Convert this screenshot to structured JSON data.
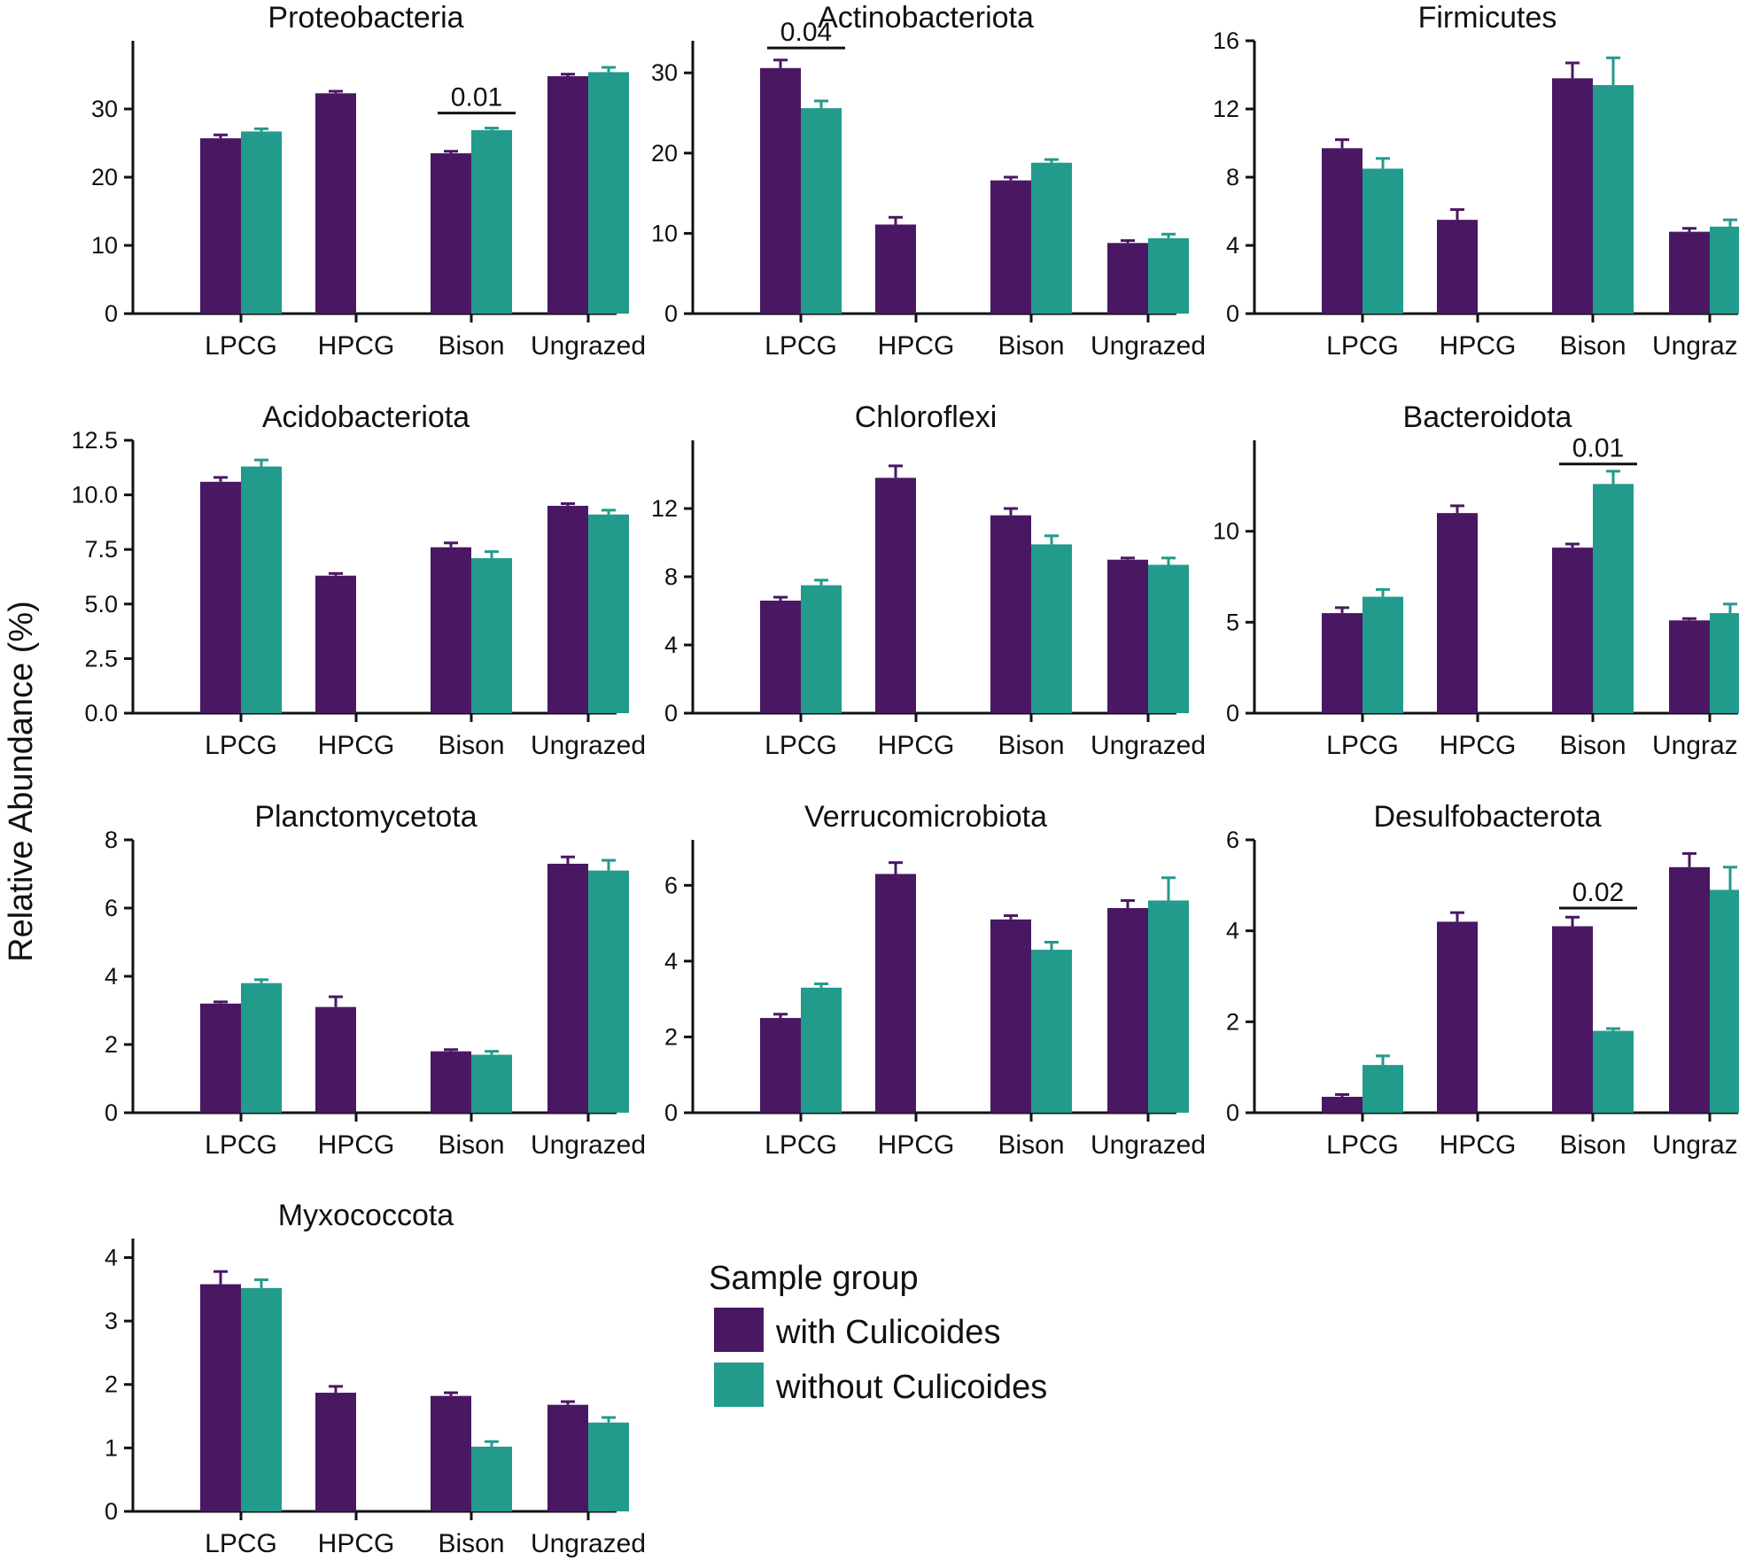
{
  "chart_data": [
    {
      "type": "bar",
      "title": "Proteobacteria",
      "categories": [
        "LPCG",
        "HPCG",
        "Bison",
        "Ungrazed"
      ],
      "ylim": [
        0,
        40
      ],
      "yticks": [
        "0",
        "10",
        "20",
        "30"
      ],
      "series": [
        {
          "name": "with Culicoides",
          "values": [
            25.7,
            32.3,
            23.5,
            34.8
          ],
          "errors": [
            0.5,
            0.3,
            0.3,
            0.3
          ]
        },
        {
          "name": "without Culicoides",
          "values": [
            26.7,
            null,
            26.9,
            35.4
          ],
          "errors": [
            0.4,
            null,
            0.3,
            0.7
          ]
        }
      ],
      "annotations": [
        {
          "label": "0.01",
          "category": "Bison",
          "height": 29.4
        }
      ]
    },
    {
      "type": "bar",
      "title": "Actinobacteriota",
      "categories": [
        "LPCG",
        "HPCG",
        "Bison",
        "Ungrazed"
      ],
      "ylim": [
        0,
        34
      ],
      "yticks": [
        "0",
        "10",
        "20",
        "30"
      ],
      "series": [
        {
          "name": "with Culicoides",
          "values": [
            30.6,
            11.1,
            16.6,
            8.8
          ],
          "errors": [
            1.0,
            0.9,
            0.4,
            0.3
          ]
        },
        {
          "name": "without Culicoides",
          "values": [
            25.6,
            null,
            18.8,
            9.4
          ],
          "errors": [
            0.9,
            null,
            0.4,
            0.5
          ]
        }
      ],
      "annotations": [
        {
          "label": "0.04",
          "category": "LPCG",
          "height": 33.1
        }
      ]
    },
    {
      "type": "bar",
      "title": "Firmicutes",
      "categories": [
        "LPCG",
        "HPCG",
        "Bison",
        "Ungrazed"
      ],
      "ylim": [
        0,
        16
      ],
      "yticks": [
        "0",
        "4",
        "8",
        "12",
        "16"
      ],
      "series": [
        {
          "name": "with Culicoides",
          "values": [
            9.7,
            5.5,
            13.8,
            4.8
          ],
          "errors": [
            0.5,
            0.6,
            0.9,
            0.2
          ]
        },
        {
          "name": "without Culicoides",
          "values": [
            8.5,
            null,
            13.4,
            5.1
          ],
          "errors": [
            0.6,
            null,
            1.6,
            0.4
          ]
        }
      ],
      "annotations": []
    },
    {
      "type": "bar",
      "title": "Acidobacteriota",
      "categories": [
        "LPCG",
        "HPCG",
        "Bison",
        "Ungrazed"
      ],
      "ylim": [
        0,
        12.5
      ],
      "yticks": [
        "0.0",
        "2.5",
        "5.0",
        "7.5",
        "10.0",
        "12.5"
      ],
      "series": [
        {
          "name": "with Culicoides",
          "values": [
            10.6,
            6.3,
            7.6,
            9.5
          ],
          "errors": [
            0.2,
            0.1,
            0.2,
            0.1
          ]
        },
        {
          "name": "without Culicoides",
          "values": [
            11.3,
            null,
            7.1,
            9.1
          ],
          "errors": [
            0.3,
            null,
            0.3,
            0.2
          ]
        }
      ],
      "annotations": []
    },
    {
      "type": "bar",
      "title": "Chloroflexi",
      "categories": [
        "LPCG",
        "HPCG",
        "Bison",
        "Ungrazed"
      ],
      "ylim": [
        0,
        16
      ],
      "yticks": [
        "0",
        "4",
        "8",
        "12"
      ],
      "series": [
        {
          "name": "with Culicoides",
          "values": [
            6.6,
            13.8,
            11.6,
            9.0
          ],
          "errors": [
            0.2,
            0.7,
            0.4,
            0.1
          ]
        },
        {
          "name": "without Culicoides",
          "values": [
            7.5,
            null,
            9.9,
            8.7
          ],
          "errors": [
            0.3,
            null,
            0.5,
            0.4
          ]
        }
      ],
      "annotations": []
    },
    {
      "type": "bar",
      "title": "Bacteroidota",
      "categories": [
        "LPCG",
        "HPCG",
        "Bison",
        "Ungrazed"
      ],
      "ylim": [
        0,
        15
      ],
      "yticks": [
        "0",
        "5",
        "10"
      ],
      "series": [
        {
          "name": "with Culicoides",
          "values": [
            5.5,
            11.0,
            9.1,
            5.1
          ],
          "errors": [
            0.3,
            0.4,
            0.2,
            0.1
          ]
        },
        {
          "name": "without Culicoides",
          "values": [
            6.4,
            null,
            12.6,
            5.5
          ],
          "errors": [
            0.4,
            null,
            0.7,
            0.5
          ]
        }
      ],
      "annotations": [
        {
          "label": "0.01",
          "category": "Bison",
          "height": 13.7
        }
      ]
    },
    {
      "type": "bar",
      "title": "Planctomycetota",
      "categories": [
        "LPCG",
        "HPCG",
        "Bison",
        "Ungrazed"
      ],
      "ylim": [
        0,
        8
      ],
      "yticks": [
        "0",
        "2",
        "4",
        "6",
        "8"
      ],
      "series": [
        {
          "name": "with Culicoides",
          "values": [
            3.2,
            3.1,
            1.8,
            7.3
          ],
          "errors": [
            0.05,
            0.3,
            0.05,
            0.2
          ]
        },
        {
          "name": "without Culicoides",
          "values": [
            3.8,
            null,
            1.7,
            7.1
          ],
          "errors": [
            0.1,
            null,
            0.1,
            0.3
          ]
        }
      ],
      "annotations": []
    },
    {
      "type": "bar",
      "title": "Verrucomicrobiota",
      "categories": [
        "LPCG",
        "HPCG",
        "Bison",
        "Ungrazed"
      ],
      "ylim": [
        0,
        7.2
      ],
      "yticks": [
        "0",
        "2",
        "4",
        "6"
      ],
      "series": [
        {
          "name": "with Culicoides",
          "values": [
            2.5,
            6.3,
            5.1,
            5.4
          ],
          "errors": [
            0.1,
            0.3,
            0.1,
            0.2
          ]
        },
        {
          "name": "without Culicoides",
          "values": [
            3.3,
            null,
            4.3,
            5.6
          ],
          "errors": [
            0.1,
            null,
            0.2,
            0.6
          ]
        }
      ],
      "annotations": []
    },
    {
      "type": "bar",
      "title": "Desulfobacterota",
      "categories": [
        "LPCG",
        "HPCG",
        "Bison",
        "Ungrazed"
      ],
      "ylim": [
        0,
        6
      ],
      "yticks": [
        "0",
        "2",
        "4",
        "6"
      ],
      "series": [
        {
          "name": "with Culicoides",
          "values": [
            0.35,
            4.2,
            4.1,
            5.4
          ],
          "errors": [
            0.05,
            0.2,
            0.2,
            0.3
          ]
        },
        {
          "name": "without Culicoides",
          "values": [
            1.05,
            null,
            1.8,
            4.9
          ],
          "errors": [
            0.2,
            null,
            0.05,
            0.5
          ]
        }
      ],
      "annotations": [
        {
          "label": "0.02",
          "category": "Bison",
          "height": 4.5
        }
      ]
    },
    {
      "type": "bar",
      "title": "Myxococcota",
      "categories": [
        "LPCG",
        "HPCG",
        "Bison",
        "Ungrazed"
      ],
      "ylim": [
        0,
        4.3
      ],
      "yticks": [
        "0",
        "1",
        "2",
        "3",
        "4"
      ],
      "series": [
        {
          "name": "with Culicoides",
          "values": [
            3.58,
            1.87,
            1.82,
            1.68
          ],
          "errors": [
            0.2,
            0.1,
            0.05,
            0.05
          ]
        },
        {
          "name": "without Culicoides",
          "values": [
            3.52,
            null,
            1.02,
            1.4
          ],
          "errors": [
            0.13,
            null,
            0.08,
            0.08
          ]
        }
      ],
      "annotations": []
    }
  ],
  "ylabel": "Relative Abundance (%)",
  "legend": {
    "title": "Sample group",
    "entries": [
      {
        "label": "with Culicoides",
        "color": "#4a1762"
      },
      {
        "label": "without Culicoides",
        "color": "#229a8c"
      }
    ]
  },
  "colors": {
    "with": "#4a1762",
    "without": "#229a8c",
    "axis": "#111111"
  }
}
